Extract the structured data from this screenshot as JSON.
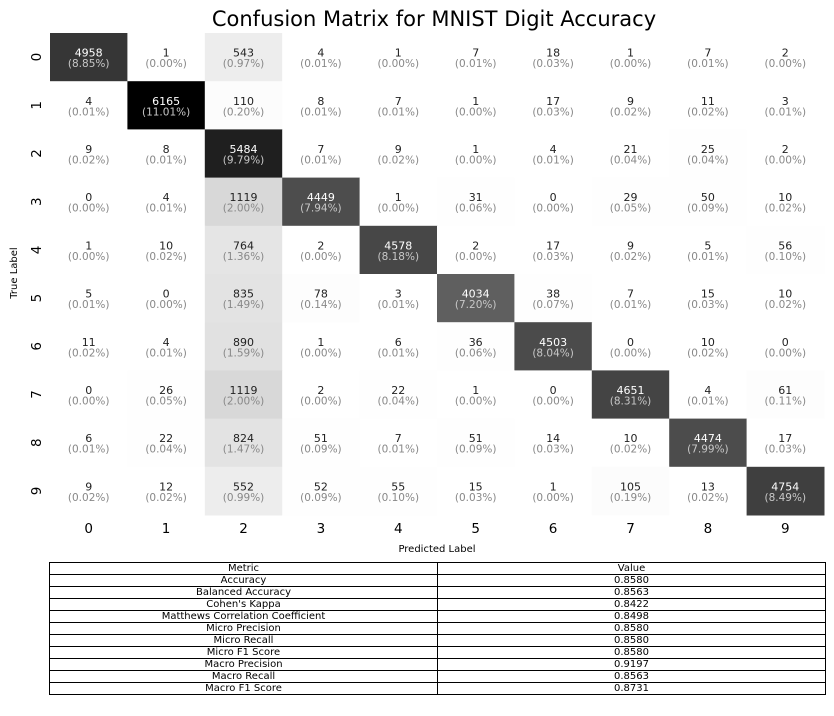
{
  "chart_data": {
    "type": "heatmap",
    "title": "Confusion Matrix for MNIST Digit Accuracy",
    "xlabel": "Predicted Label",
    "ylabel": "True Label",
    "x_categories": [
      "0",
      "1",
      "2",
      "3",
      "4",
      "5",
      "6",
      "7",
      "8",
      "9"
    ],
    "y_categories": [
      "0",
      "1",
      "2",
      "3",
      "4",
      "5",
      "6",
      "7",
      "8",
      "9"
    ],
    "colormap": "greys",
    "grid": false,
    "colorbar": false,
    "values": [
      [
        4958,
        1,
        543,
        4,
        1,
        7,
        18,
        1,
        7,
        2
      ],
      [
        4,
        6165,
        110,
        8,
        7,
        1,
        17,
        9,
        11,
        3
      ],
      [
        9,
        8,
        5484,
        7,
        9,
        1,
        4,
        21,
        25,
        2
      ],
      [
        0,
        4,
        1119,
        4449,
        1,
        31,
        0,
        29,
        50,
        10
      ],
      [
        1,
        10,
        764,
        2,
        4578,
        2,
        17,
        9,
        5,
        56
      ],
      [
        5,
        0,
        835,
        78,
        3,
        4034,
        38,
        7,
        15,
        10
      ],
      [
        11,
        4,
        890,
        1,
        6,
        36,
        4503,
        0,
        10,
        0
      ],
      [
        0,
        26,
        1119,
        2,
        22,
        1,
        0,
        4651,
        4,
        61
      ],
      [
        6,
        22,
        824,
        51,
        7,
        51,
        14,
        10,
        4474,
        17
      ],
      [
        9,
        12,
        552,
        52,
        55,
        15,
        1,
        105,
        13,
        4754
      ]
    ],
    "percentages": [
      [
        "(8.85%)",
        "(0.00%)",
        "(0.97%)",
        "(0.01%)",
        "(0.00%)",
        "(0.01%)",
        "(0.03%)",
        "(0.00%)",
        "(0.01%)",
        "(0.00%)"
      ],
      [
        "(0.01%)",
        "(11.01%)",
        "(0.20%)",
        "(0.01%)",
        "(0.01%)",
        "(0.00%)",
        "(0.03%)",
        "(0.02%)",
        "(0.02%)",
        "(0.01%)"
      ],
      [
        "(0.02%)",
        "(0.01%)",
        "(9.79%)",
        "(0.01%)",
        "(0.02%)",
        "(0.00%)",
        "(0.01%)",
        "(0.04%)",
        "(0.04%)",
        "(0.00%)"
      ],
      [
        "(0.00%)",
        "(0.01%)",
        "(2.00%)",
        "(7.94%)",
        "(0.00%)",
        "(0.06%)",
        "(0.00%)",
        "(0.05%)",
        "(0.09%)",
        "(0.02%)"
      ],
      [
        "(0.00%)",
        "(0.02%)",
        "(1.36%)",
        "(0.00%)",
        "(8.18%)",
        "(0.00%)",
        "(0.03%)",
        "(0.02%)",
        "(0.01%)",
        "(0.10%)"
      ],
      [
        "(0.01%)",
        "(0.00%)",
        "(1.49%)",
        "(0.14%)",
        "(0.01%)",
        "(7.20%)",
        "(0.07%)",
        "(0.01%)",
        "(0.03%)",
        "(0.02%)"
      ],
      [
        "(0.02%)",
        "(0.01%)",
        "(1.59%)",
        "(0.00%)",
        "(0.01%)",
        "(0.06%)",
        "(8.04%)",
        "(0.00%)",
        "(0.02%)",
        "(0.00%)"
      ],
      [
        "(0.00%)",
        "(0.05%)",
        "(2.00%)",
        "(0.00%)",
        "(0.04%)",
        "(0.00%)",
        "(0.00%)",
        "(8.31%)",
        "(0.01%)",
        "(0.11%)"
      ],
      [
        "(0.01%)",
        "(0.04%)",
        "(1.47%)",
        "(0.09%)",
        "(0.01%)",
        "(0.09%)",
        "(0.03%)",
        "(0.02%)",
        "(7.99%)",
        "(0.03%)"
      ],
      [
        "(0.02%)",
        "(0.02%)",
        "(0.99%)",
        "(0.09%)",
        "(0.10%)",
        "(0.03%)",
        "(0.00%)",
        "(0.19%)",
        "(0.02%)",
        "(8.49%)"
      ]
    ]
  },
  "metrics_table": {
    "headers": [
      "Metric",
      "Value"
    ],
    "rows": [
      [
        "Accuracy",
        "0.8580"
      ],
      [
        "Balanced Accuracy",
        "0.8563"
      ],
      [
        "Cohen's Kappa",
        "0.8422"
      ],
      [
        "Matthews Correlation Coefficient",
        "0.8498"
      ],
      [
        "Micro Precision",
        "0.8580"
      ],
      [
        "Micro Recall",
        "0.8580"
      ],
      [
        "Micro F1 Score",
        "0.8580"
      ],
      [
        "Macro Precision",
        "0.9197"
      ],
      [
        "Macro Recall",
        "0.8563"
      ],
      [
        "Macro F1 Score",
        "0.8731"
      ]
    ]
  }
}
